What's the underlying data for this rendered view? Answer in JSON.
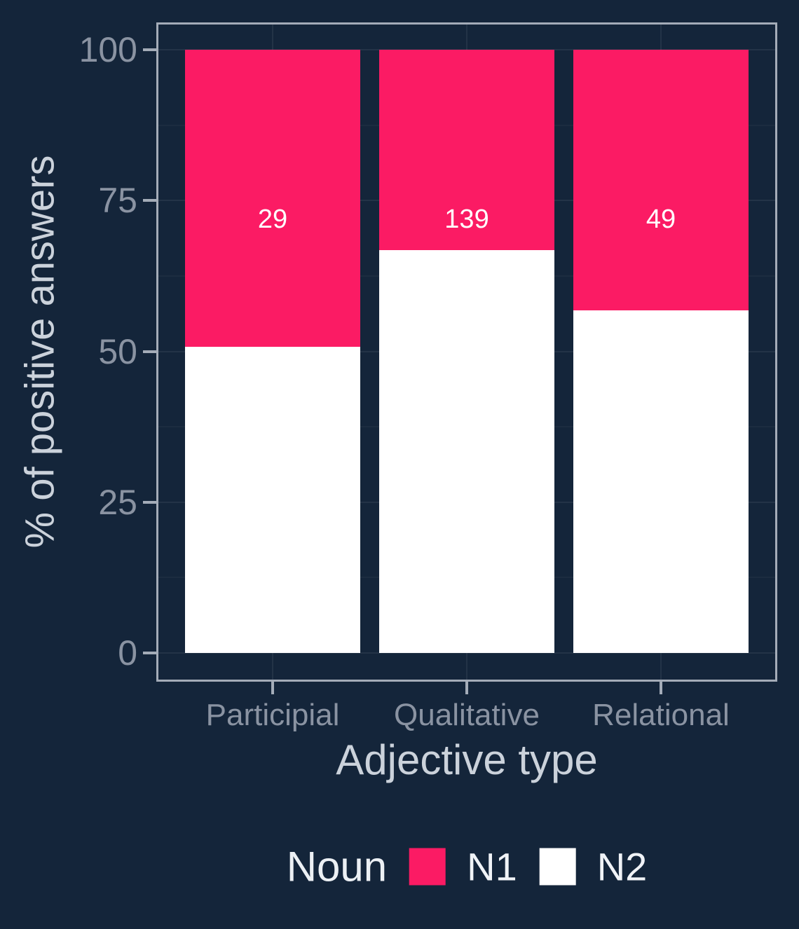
{
  "colors": {
    "background": "#14253A",
    "panel_border": "#A4ACB8",
    "axis_tick_text": "#8A93A2",
    "axis_title_text": "#CBD2DB",
    "bar_label_text": "#FFFFFF",
    "n1": "#FB1B64",
    "n2": "#FFFFFF"
  },
  "chart_data": {
    "type": "bar",
    "subtype": "stacked-percent",
    "title": "",
    "xlabel": "Adjective type",
    "ylabel": "% of positive answers",
    "categories": [
      "Participial",
      "Qualitative",
      "Relational"
    ],
    "y_ticks": [
      0,
      25,
      50,
      75,
      100
    ],
    "ylim": [
      0,
      100
    ],
    "grid": true,
    "series": [
      {
        "name": "N1",
        "color": "#FB1B64",
        "values_pct": [
          49.2,
          33.2,
          43.2
        ],
        "counts_labels": [
          "29",
          "139",
          "49"
        ]
      },
      {
        "name": "N2",
        "color": "#FFFFFF",
        "values_pct": [
          50.8,
          66.8,
          56.8
        ]
      }
    ],
    "legend": {
      "position": "bottom",
      "title": "Noun",
      "items": [
        {
          "label": "N1",
          "color": "#FB1B64"
        },
        {
          "label": "N2",
          "color": "#FFFFFF"
        }
      ]
    }
  }
}
